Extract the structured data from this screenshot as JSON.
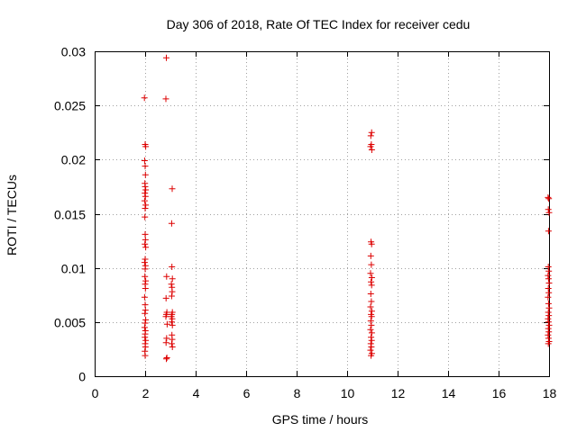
{
  "chart_data": {
    "type": "scatter",
    "title": "Day 306 of 2018, Rate Of TEC Index for receiver cedu",
    "xlabel": "GPS time / hours",
    "ylabel": "ROTI / TECUs",
    "xlim": [
      0,
      18
    ],
    "ylim": [
      0,
      0.03
    ],
    "x_ticks": [
      0,
      2,
      4,
      6,
      8,
      10,
      12,
      14,
      16,
      18
    ],
    "x_tick_labels": [
      "0",
      "2",
      "4",
      "6",
      "8",
      "10",
      "12",
      "14",
      "16",
      "18"
    ],
    "y_ticks": [
      0,
      0.005,
      0.01,
      0.015,
      0.02,
      0.025,
      0.03
    ],
    "y_tick_labels": [
      "0",
      "0.005",
      "0.01",
      "0.015",
      "0.02",
      "0.025",
      "0.03"
    ],
    "grid": true,
    "marker": "+",
    "marker_color": "#dd0000",
    "series": [
      {
        "name": "ROTI",
        "points": [
          [
            1.97,
            0.0257
          ],
          [
            2.0,
            0.0214
          ],
          [
            2.02,
            0.0212
          ],
          [
            1.98,
            0.0199
          ],
          [
            2.0,
            0.0194
          ],
          [
            2.01,
            0.0186
          ],
          [
            1.99,
            0.0178
          ],
          [
            2.0,
            0.0175
          ],
          [
            2.02,
            0.0172
          ],
          [
            1.99,
            0.0169
          ],
          [
            2.01,
            0.0166
          ],
          [
            1.98,
            0.0162
          ],
          [
            2.02,
            0.0158
          ],
          [
            2.0,
            0.0155
          ],
          [
            1.99,
            0.0147
          ],
          [
            2.0,
            0.0131
          ],
          [
            2.01,
            0.0126
          ],
          [
            1.99,
            0.0122
          ],
          [
            2.02,
            0.0119
          ],
          [
            2.0,
            0.0108
          ],
          [
            1.98,
            0.0105
          ],
          [
            2.01,
            0.0102
          ],
          [
            2.0,
            0.0099
          ],
          [
            1.99,
            0.0092
          ],
          [
            2.02,
            0.0088
          ],
          [
            2.0,
            0.0085
          ],
          [
            2.01,
            0.0081
          ],
          [
            1.98,
            0.0073
          ],
          [
            2.0,
            0.0066
          ],
          [
            2.01,
            0.0061
          ],
          [
            1.99,
            0.0058
          ],
          [
            2.02,
            0.0052
          ],
          [
            2.0,
            0.0049
          ],
          [
            1.98,
            0.0045
          ],
          [
            2.01,
            0.0042
          ],
          [
            2.0,
            0.0039
          ],
          [
            1.99,
            0.0036
          ],
          [
            2.02,
            0.0033
          ],
          [
            2.0,
            0.003
          ],
          [
            2.01,
            0.0027
          ],
          [
            1.99,
            0.0023
          ],
          [
            2.0,
            0.0019
          ],
          [
            2.84,
            0.0294
          ],
          [
            2.82,
            0.0256
          ],
          [
            2.85,
            0.0092
          ],
          [
            2.83,
            0.0072
          ],
          [
            2.86,
            0.0059
          ],
          [
            2.84,
            0.0057
          ],
          [
            2.82,
            0.0055
          ],
          [
            2.87,
            0.0048
          ],
          [
            2.85,
            0.0035
          ],
          [
            2.83,
            0.0031
          ],
          [
            2.86,
            0.0017
          ],
          [
            2.84,
            0.0016
          ],
          [
            3.07,
            0.0173
          ],
          [
            3.05,
            0.0141
          ],
          [
            3.06,
            0.0101
          ],
          [
            3.08,
            0.009
          ],
          [
            3.04,
            0.0085
          ],
          [
            3.06,
            0.0082
          ],
          [
            3.07,
            0.0078
          ],
          [
            3.05,
            0.0074
          ],
          [
            3.08,
            0.0059
          ],
          [
            3.06,
            0.0057
          ],
          [
            3.04,
            0.0055
          ],
          [
            3.07,
            0.0053
          ],
          [
            3.05,
            0.005
          ],
          [
            3.08,
            0.0047
          ],
          [
            3.06,
            0.0038
          ],
          [
            3.07,
            0.0034
          ],
          [
            3.05,
            0.003
          ],
          [
            3.08,
            0.0027
          ],
          [
            10.97,
            0.0225
          ],
          [
            10.94,
            0.0222
          ],
          [
            10.96,
            0.0214
          ],
          [
            10.93,
            0.0212
          ],
          [
            10.98,
            0.0209
          ],
          [
            10.95,
            0.0124
          ],
          [
            10.97,
            0.0122
          ],
          [
            10.94,
            0.0111
          ],
          [
            10.96,
            0.0103
          ],
          [
            10.93,
            0.0095
          ],
          [
            10.98,
            0.0091
          ],
          [
            10.95,
            0.0087
          ],
          [
            10.97,
            0.0084
          ],
          [
            10.94,
            0.0076
          ],
          [
            10.96,
            0.0069
          ],
          [
            10.93,
            0.0064
          ],
          [
            10.98,
            0.006
          ],
          [
            10.95,
            0.0057
          ],
          [
            10.97,
            0.0055
          ],
          [
            10.94,
            0.0051
          ],
          [
            10.96,
            0.0047
          ],
          [
            10.93,
            0.0043
          ],
          [
            10.98,
            0.004
          ],
          [
            10.95,
            0.0036
          ],
          [
            10.97,
            0.0033
          ],
          [
            10.94,
            0.003
          ],
          [
            10.96,
            0.0027
          ],
          [
            10.93,
            0.0024
          ],
          [
            10.98,
            0.0021
          ],
          [
            10.95,
            0.0019
          ],
          [
            17.96,
            0.0165
          ],
          [
            17.99,
            0.0164
          ],
          [
            17.97,
            0.0154
          ],
          [
            18.0,
            0.0151
          ],
          [
            17.98,
            0.0134
          ],
          [
            17.97,
            0.0101
          ],
          [
            17.99,
            0.0097
          ],
          [
            17.96,
            0.0093
          ],
          [
            17.98,
            0.009
          ],
          [
            18.0,
            0.0086
          ],
          [
            17.97,
            0.0081
          ],
          [
            17.99,
            0.0077
          ],
          [
            17.96,
            0.0073
          ],
          [
            17.98,
            0.0067
          ],
          [
            18.0,
            0.0063
          ],
          [
            17.97,
            0.0059
          ],
          [
            17.99,
            0.0056
          ],
          [
            17.96,
            0.0053
          ],
          [
            17.98,
            0.005
          ],
          [
            18.0,
            0.0047
          ],
          [
            17.97,
            0.0044
          ],
          [
            17.99,
            0.0041
          ],
          [
            17.96,
            0.0038
          ],
          [
            17.98,
            0.0035
          ],
          [
            18.0,
            0.0032
          ],
          [
            17.97,
            0.003
          ]
        ]
      }
    ]
  }
}
